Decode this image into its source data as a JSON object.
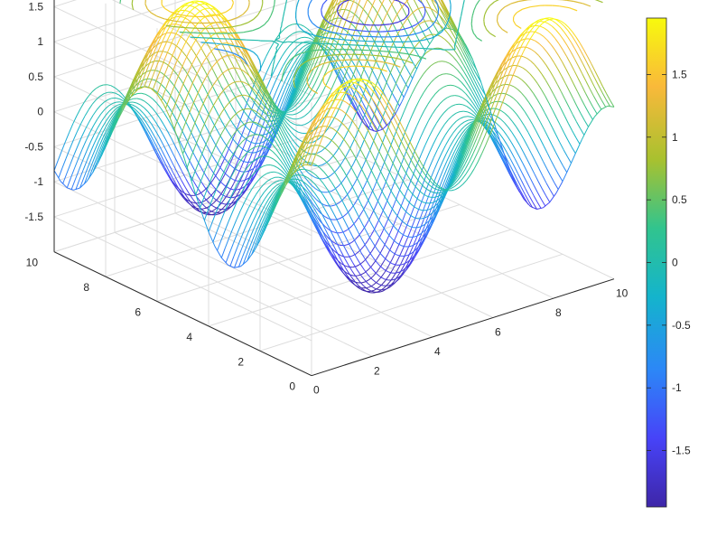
{
  "chart_data": {
    "type": "surface-mesh-with-contour",
    "function": "z = sin(x) + cos(y)",
    "x_range": [
      0,
      10
    ],
    "y_range": [
      0,
      10
    ],
    "z_range": [
      -2,
      2
    ],
    "mesh_style": "meshz (lines along x, colored by z)",
    "contour_projection": "top",
    "colormap": "parula",
    "grid": true,
    "x_ticks": [
      "0",
      "2",
      "4",
      "6",
      "8",
      "10"
    ],
    "y_ticks": [
      "0",
      "2",
      "4",
      "6",
      "8",
      "10"
    ],
    "z_ticks": [
      "-1.5",
      "-1",
      "-0.5",
      "0",
      "0.5",
      "1",
      "1.5"
    ],
    "colorbar": {
      "limits": [
        -1.95,
        1.95
      ],
      "ticks": [
        "-1.5",
        "-1",
        "-0.5",
        "0",
        "0.5",
        "1",
        "1.5"
      ],
      "position": "right"
    },
    "title": "",
    "xlabel": "",
    "ylabel": "",
    "zlabel": ""
  },
  "colors": {
    "colormap_stops": [
      "#3e26a8",
      "#4743f8",
      "#2c87f7",
      "#14b4cc",
      "#31c48e",
      "#a8c12f",
      "#f9b93a",
      "#f8fa0d"
    ],
    "grid": "#dcdcdc",
    "axis": "#262626"
  }
}
